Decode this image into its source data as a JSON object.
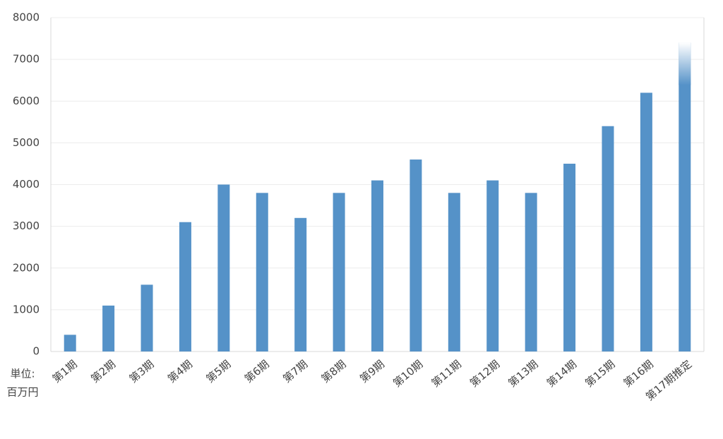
{
  "chart_data": {
    "type": "bar",
    "categories": [
      "第1期",
      "第2期",
      "第3期",
      "第4期",
      "第5期",
      "第6期",
      "第7期",
      "第8期",
      "第9期",
      "第10期",
      "第11期",
      "第12期",
      "第13期",
      "第14期",
      "第15期",
      "第16期",
      "第17期推定"
    ],
    "values": [
      400,
      1100,
      1600,
      3100,
      4000,
      3800,
      3200,
      3800,
      4100,
      4600,
      3800,
      4100,
      3800,
      4500,
      5400,
      6200,
      7400
    ],
    "color": "#5592c8",
    "ylim": [
      0,
      8000
    ],
    "yticks": [
      0,
      1000,
      2000,
      3000,
      4000,
      5000,
      6000,
      7000,
      8000
    ],
    "grid": true,
    "fade_top_last_bar": true,
    "unit_label": [
      "単位:",
      "百万円"
    ]
  }
}
